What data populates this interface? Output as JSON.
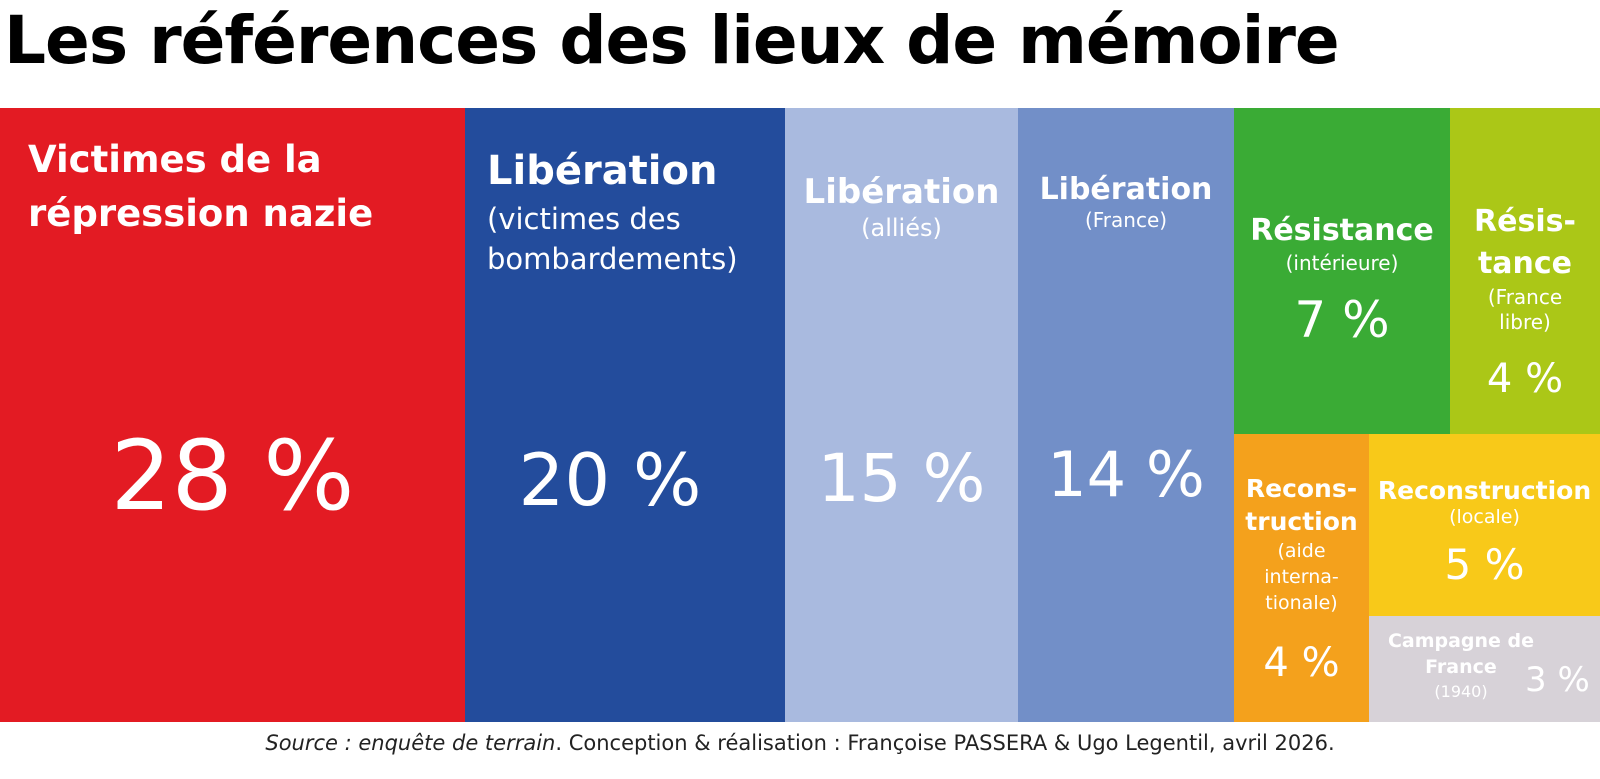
{
  "title": "Les références des lieux de mémoire",
  "footer": {
    "source_label": "Source : enquête de terrain",
    "credits": ". Conception & réalisation : Françoise PASSERA & Ugo Legentil, avril 2026."
  },
  "colors": {
    "repression": "#e31b23",
    "liberation_bombardements": "#234c9c",
    "liberation_allies": "#a9badf",
    "liberation_france": "#728fc8",
    "resistance_interieure": "#3aab35",
    "resistance_france_libre": "#abc717",
    "reconstruction_internationale": "#f4a11c",
    "reconstruction_locale": "#f8c919",
    "campagne_1940": "#d7d2d8"
  },
  "chart_data": {
    "type": "treemap",
    "title": "Les références des lieux de mémoire",
    "unit": "%",
    "items": [
      {
        "key": "repression",
        "name": "Victimes de la répression nazie",
        "value": 28,
        "label": "28 %"
      },
      {
        "key": "liberation_bombardements",
        "name": "Libération",
        "sub": "(victimes des bombardements)",
        "value": 20,
        "label": "20 %"
      },
      {
        "key": "liberation_allies",
        "name": "Libération",
        "sub": "(alliés)",
        "value": 15,
        "label": "15 %"
      },
      {
        "key": "liberation_france",
        "name": "Libération",
        "sub": "(France)",
        "value": 14,
        "label": "14 %"
      },
      {
        "key": "resistance_interieure",
        "name": "Résistance",
        "sub": "(intérieure)",
        "value": 7,
        "label": "7 %"
      },
      {
        "key": "resistance_france_libre",
        "name": "Résis-tance",
        "sub": "(France libre)",
        "value": 4,
        "label": "4 %"
      },
      {
        "key": "reconstruction_internationale",
        "name": "Recons-truction",
        "sub": "(aide interna-tionale)",
        "value": 4,
        "label": "4 %"
      },
      {
        "key": "reconstruction_locale",
        "name": "Reconstruction",
        "sub": "(locale)",
        "value": 5,
        "label": "5 %"
      },
      {
        "key": "campagne_1940",
        "name": "Campagne de France",
        "sub": "(1940)",
        "value": 3,
        "label": "3 %"
      }
    ],
    "labels": {
      "repression": {
        "l1": "Victimes de la",
        "l2": "répression nazie",
        "pct": "28 %"
      },
      "liberation_bombardements": {
        "name": "Libération",
        "s1": "(victimes des",
        "s2": "bombardements)",
        "pct": "20 %"
      },
      "liberation_allies": {
        "name": "Libération",
        "sub": "(alliés)",
        "pct": "15 %"
      },
      "liberation_france": {
        "name": "Libération",
        "sub": "(France)",
        "pct": "14 %"
      },
      "resistance_interieure": {
        "name": "Résistance",
        "sub": "(intérieure)",
        "pct": "7 %"
      },
      "resistance_france_libre": {
        "n1": "Résis-",
        "n2": "tance",
        "s1": "(France",
        "s2": "libre)",
        "pct": "4 %"
      },
      "reconstruction_internationale": {
        "n1": "Recons-",
        "n2": "truction",
        "s1": "(aide",
        "s2": "interna-",
        "s3": "tionale)",
        "pct": "4 %"
      },
      "reconstruction_locale": {
        "name": "Reconstruction",
        "sub": "(locale)",
        "pct": "5 %"
      },
      "campagne_1940": {
        "n1": "Campagne de",
        "n2": "France",
        "sub": "(1940)",
        "pct": "3 %"
      }
    }
  }
}
